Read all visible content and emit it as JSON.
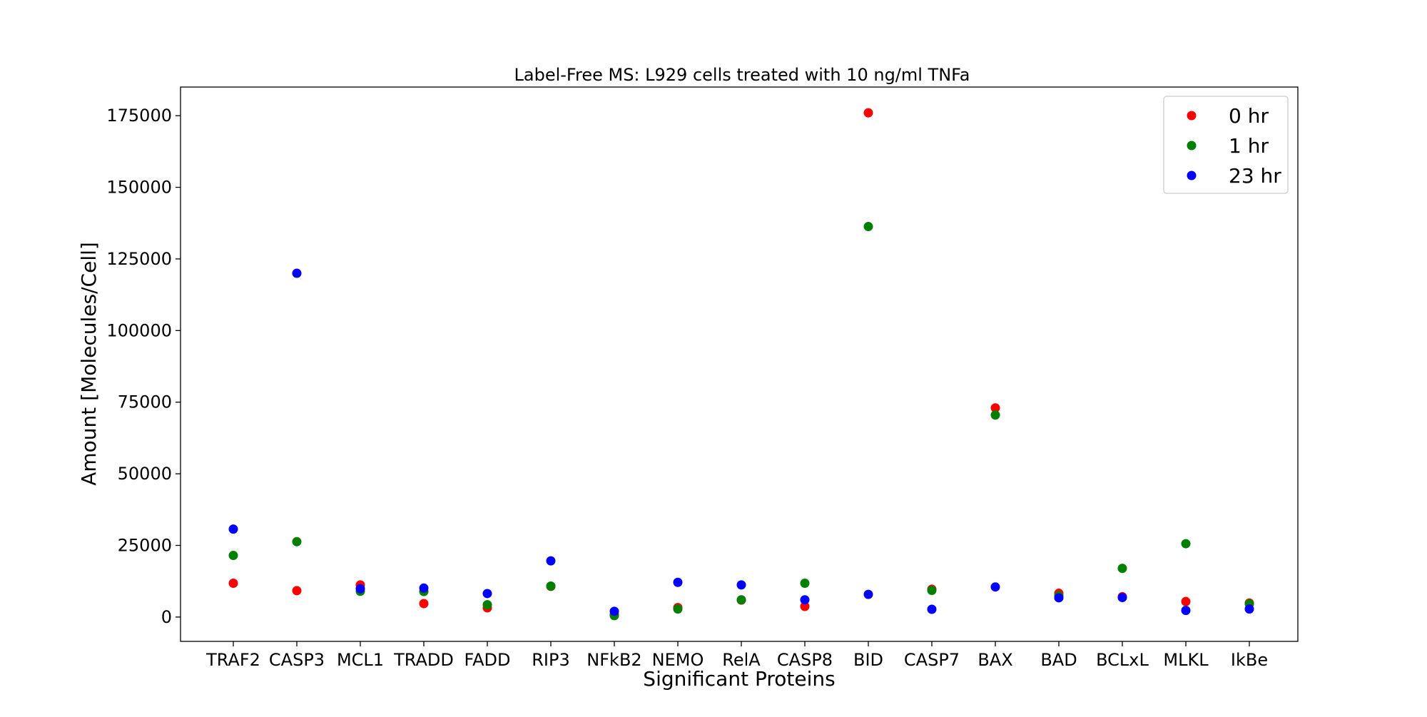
{
  "chart_data": {
    "type": "scatter",
    "title": "Label-Free MS: L929 cells treated with 10 ng/ml TNFa",
    "xlabel": "Significant Proteins",
    "ylabel": "Amount [Molecules/Cell]",
    "categories": [
      "TRAF2",
      "CASP3",
      "MCL1",
      "TRADD",
      "FADD",
      "RIP3",
      "NFkB2",
      "NEMO",
      "RelA",
      "CASP8",
      "BID",
      "CASP7",
      "BAX",
      "BAD",
      "BCLxL",
      "MLKL",
      "IkBe"
    ],
    "ylim": [
      -8500,
      185000
    ],
    "yticks": [
      0,
      25000,
      50000,
      75000,
      100000,
      125000,
      150000,
      175000
    ],
    "ytick_labels": [
      "0",
      "25000",
      "50000",
      "75000",
      "100000",
      "125000",
      "150000",
      "175000"
    ],
    "grid": false,
    "legend_position": "top-right",
    "series": [
      {
        "name": "0 hr",
        "color": "#ff0000",
        "values": [
          11800,
          9200,
          11200,
          4700,
          3200,
          10700,
          900,
          3300,
          5900,
          3700,
          176000,
          9700,
          73000,
          8300,
          7100,
          5400,
          4900
        ]
      },
      {
        "name": "1 hr",
        "color": "#008000",
        "values": [
          21500,
          26300,
          9000,
          8900,
          4300,
          10800,
          500,
          2800,
          6000,
          11800,
          136300,
          9300,
          70500,
          7400,
          17000,
          25600,
          4600
        ]
      },
      {
        "name": "23 hr",
        "color": "#0000ff",
        "values": [
          30700,
          120000,
          9900,
          10100,
          8200,
          19600,
          2000,
          12100,
          11200,
          6000,
          7900,
          2700,
          10500,
          6700,
          6800,
          2300,
          2800
        ]
      }
    ]
  }
}
